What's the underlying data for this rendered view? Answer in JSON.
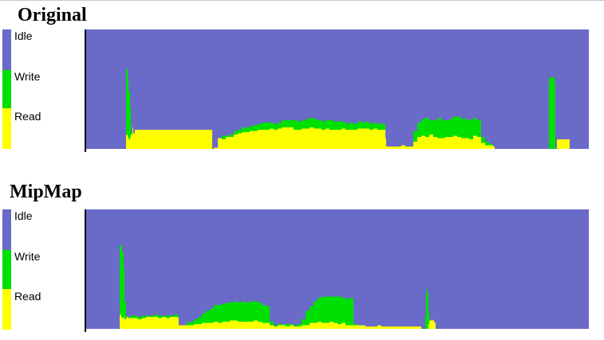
{
  "colors": {
    "idle": "#6a6ac8",
    "write": "#00e000",
    "read": "#ffff00",
    "axis": "#000000"
  },
  "legend": {
    "idle_label": "Idle",
    "write_label": "Write",
    "read_label": "Read"
  },
  "chart_data": [
    {
      "type": "area",
      "title": "Original",
      "stacked": true,
      "x_range": [
        0,
        630
      ],
      "y_range": [
        0,
        1
      ],
      "series_order": [
        "Read",
        "Write",
        "Idle"
      ],
      "x": [
        0,
        49,
        50,
        52,
        53,
        55,
        56,
        58,
        59,
        61,
        155,
        158,
        160,
        165,
        170,
        175,
        180,
        185,
        190,
        195,
        200,
        205,
        210,
        215,
        220,
        225,
        230,
        235,
        240,
        245,
        250,
        255,
        260,
        265,
        270,
        275,
        280,
        285,
        290,
        295,
        300,
        305,
        310,
        315,
        320,
        325,
        330,
        335,
        340,
        345,
        350,
        355,
        360,
        365,
        370,
        375,
        376,
        380,
        385,
        390,
        395,
        400,
        405,
        410,
        415,
        420,
        425,
        430,
        435,
        440,
        445,
        450,
        455,
        460,
        465,
        470,
        475,
        480,
        485,
        490,
        495,
        500,
        505,
        510,
        512,
        515,
        580,
        587,
        588,
        590,
        595,
        600,
        605,
        606
      ],
      "series": [
        {
          "name": "Read",
          "values": [
            0.0,
            0.0,
            0.12,
            0.1,
            0.08,
            0.1,
            0.12,
            0.18,
            0.13,
            0.16,
            0.16,
            0.0,
            0.01,
            0.09,
            0.08,
            0.1,
            0.1,
            0.12,
            0.13,
            0.14,
            0.14,
            0.15,
            0.15,
            0.16,
            0.16,
            0.16,
            0.17,
            0.16,
            0.17,
            0.18,
            0.18,
            0.18,
            0.16,
            0.16,
            0.17,
            0.17,
            0.18,
            0.17,
            0.17,
            0.16,
            0.17,
            0.16,
            0.16,
            0.16,
            0.17,
            0.16,
            0.16,
            0.16,
            0.17,
            0.17,
            0.17,
            0.16,
            0.17,
            0.16,
            0.16,
            0.09,
            0.02,
            0.02,
            0.02,
            0.02,
            0.03,
            0.02,
            0.02,
            0.06,
            0.1,
            0.11,
            0.1,
            0.12,
            0.1,
            0.09,
            0.09,
            0.1,
            0.1,
            0.11,
            0.1,
            0.09,
            0.09,
            0.08,
            0.11,
            0.1,
            0.05,
            0.03,
            0.03,
            0.02,
            0.0,
            0.0,
            0.0,
            0.0,
            0.0,
            0.08,
            0.08,
            0.08,
            0.08,
            0.0
          ]
        },
        {
          "name": "Write",
          "values": [
            0.0,
            0.0,
            0.55,
            0.5,
            0.4,
            0.25,
            0.02,
            0.0,
            0.0,
            0.0,
            0.0,
            0.0,
            0.0,
            0.0,
            0.03,
            0.01,
            0.02,
            0.03,
            0.03,
            0.04,
            0.04,
            0.04,
            0.05,
            0.05,
            0.06,
            0.06,
            0.05,
            0.05,
            0.05,
            0.06,
            0.06,
            0.06,
            0.08,
            0.07,
            0.07,
            0.08,
            0.08,
            0.08,
            0.07,
            0.07,
            0.07,
            0.08,
            0.07,
            0.07,
            0.06,
            0.05,
            0.06,
            0.05,
            0.06,
            0.05,
            0.06,
            0.05,
            0.05,
            0.05,
            0.05,
            0.0,
            0.0,
            0.0,
            0.0,
            0.0,
            0.0,
            0.0,
            0.0,
            0.09,
            0.12,
            0.14,
            0.16,
            0.12,
            0.14,
            0.17,
            0.15,
            0.14,
            0.15,
            0.16,
            0.17,
            0.16,
            0.16,
            0.16,
            0.15,
            0.14,
            0.05,
            0.03,
            0.01,
            0.0,
            0.0,
            0.0,
            0.6,
            0.55,
            0.0,
            0.0,
            0.0,
            0.0,
            0.0,
            0.0
          ]
        }
      ]
    },
    {
      "type": "area",
      "title": "MipMap",
      "stacked": true,
      "x_range": [
        0,
        630
      ],
      "y_range": [
        0,
        1
      ],
      "series_order": [
        "Read",
        "Write",
        "Idle"
      ],
      "x": [
        0,
        41,
        42,
        44,
        45,
        47,
        48,
        50,
        51,
        53,
        55,
        60,
        65,
        70,
        75,
        80,
        85,
        90,
        95,
        100,
        105,
        110,
        115,
        116,
        120,
        125,
        130,
        135,
        140,
        145,
        150,
        155,
        160,
        165,
        170,
        175,
        180,
        185,
        190,
        195,
        200,
        205,
        210,
        215,
        220,
        225,
        230,
        235,
        240,
        245,
        250,
        255,
        260,
        265,
        270,
        275,
        280,
        285,
        290,
        295,
        300,
        305,
        310,
        315,
        320,
        325,
        330,
        335,
        340,
        345,
        350,
        355,
        360,
        365,
        370,
        375,
        380,
        385,
        390,
        395,
        400,
        405,
        410,
        415,
        420,
        425,
        426,
        427,
        429,
        430,
        433,
        434,
        436,
        437,
        438,
        440
      ],
      "series": [
        {
          "name": "Read",
          "values": [
            0.0,
            0.0,
            0.12,
            0.1,
            0.09,
            0.1,
            0.08,
            0.09,
            0.1,
            0.09,
            0.09,
            0.09,
            0.08,
            0.09,
            0.1,
            0.1,
            0.1,
            0.09,
            0.1,
            0.09,
            0.1,
            0.1,
            0.09,
            0.03,
            0.03,
            0.03,
            0.03,
            0.04,
            0.04,
            0.05,
            0.05,
            0.05,
            0.06,
            0.05,
            0.06,
            0.06,
            0.07,
            0.07,
            0.06,
            0.06,
            0.06,
            0.06,
            0.07,
            0.06,
            0.05,
            0.05,
            0.03,
            0.02,
            0.03,
            0.03,
            0.02,
            0.03,
            0.02,
            0.02,
            0.03,
            0.03,
            0.05,
            0.05,
            0.06,
            0.05,
            0.05,
            0.06,
            0.05,
            0.04,
            0.05,
            0.03,
            0.03,
            0.03,
            0.03,
            0.03,
            0.02,
            0.02,
            0.02,
            0.03,
            0.02,
            0.02,
            0.02,
            0.02,
            0.02,
            0.02,
            0.02,
            0.02,
            0.02,
            0.02,
            0.0,
            0.0,
            0.0,
            0.0,
            0.04,
            0.07,
            0.08,
            0.07,
            0.06,
            0.05,
            0.0,
            0.0
          ]
        },
        {
          "name": "Write",
          "values": [
            0.0,
            0.0,
            0.58,
            0.6,
            0.55,
            0.4,
            0.15,
            0.02,
            0.0,
            0.0,
            0.02,
            0.02,
            0.02,
            0.02,
            0.01,
            0.01,
            0.02,
            0.02,
            0.01,
            0.02,
            0.01,
            0.02,
            0.02,
            0.0,
            0.0,
            0.02,
            0.03,
            0.04,
            0.06,
            0.08,
            0.1,
            0.12,
            0.14,
            0.15,
            0.15,
            0.16,
            0.15,
            0.16,
            0.16,
            0.17,
            0.16,
            0.17,
            0.16,
            0.16,
            0.15,
            0.14,
            0.03,
            0.01,
            0.01,
            0.01,
            0.02,
            0.01,
            0.01,
            0.02,
            0.05,
            0.12,
            0.14,
            0.18,
            0.2,
            0.22,
            0.22,
            0.21,
            0.22,
            0.23,
            0.21,
            0.22,
            0.23,
            0.01,
            0.0,
            0.0,
            0.0,
            0.0,
            0.0,
            0.0,
            0.0,
            0.0,
            0.0,
            0.0,
            0.0,
            0.0,
            0.0,
            0.0,
            0.0,
            0.0,
            0.0,
            0.1,
            0.35,
            0.3,
            0.1,
            0.0,
            0.0,
            0.0,
            0.0,
            0.0,
            0.0,
            0.0
          ]
        }
      ]
    }
  ]
}
